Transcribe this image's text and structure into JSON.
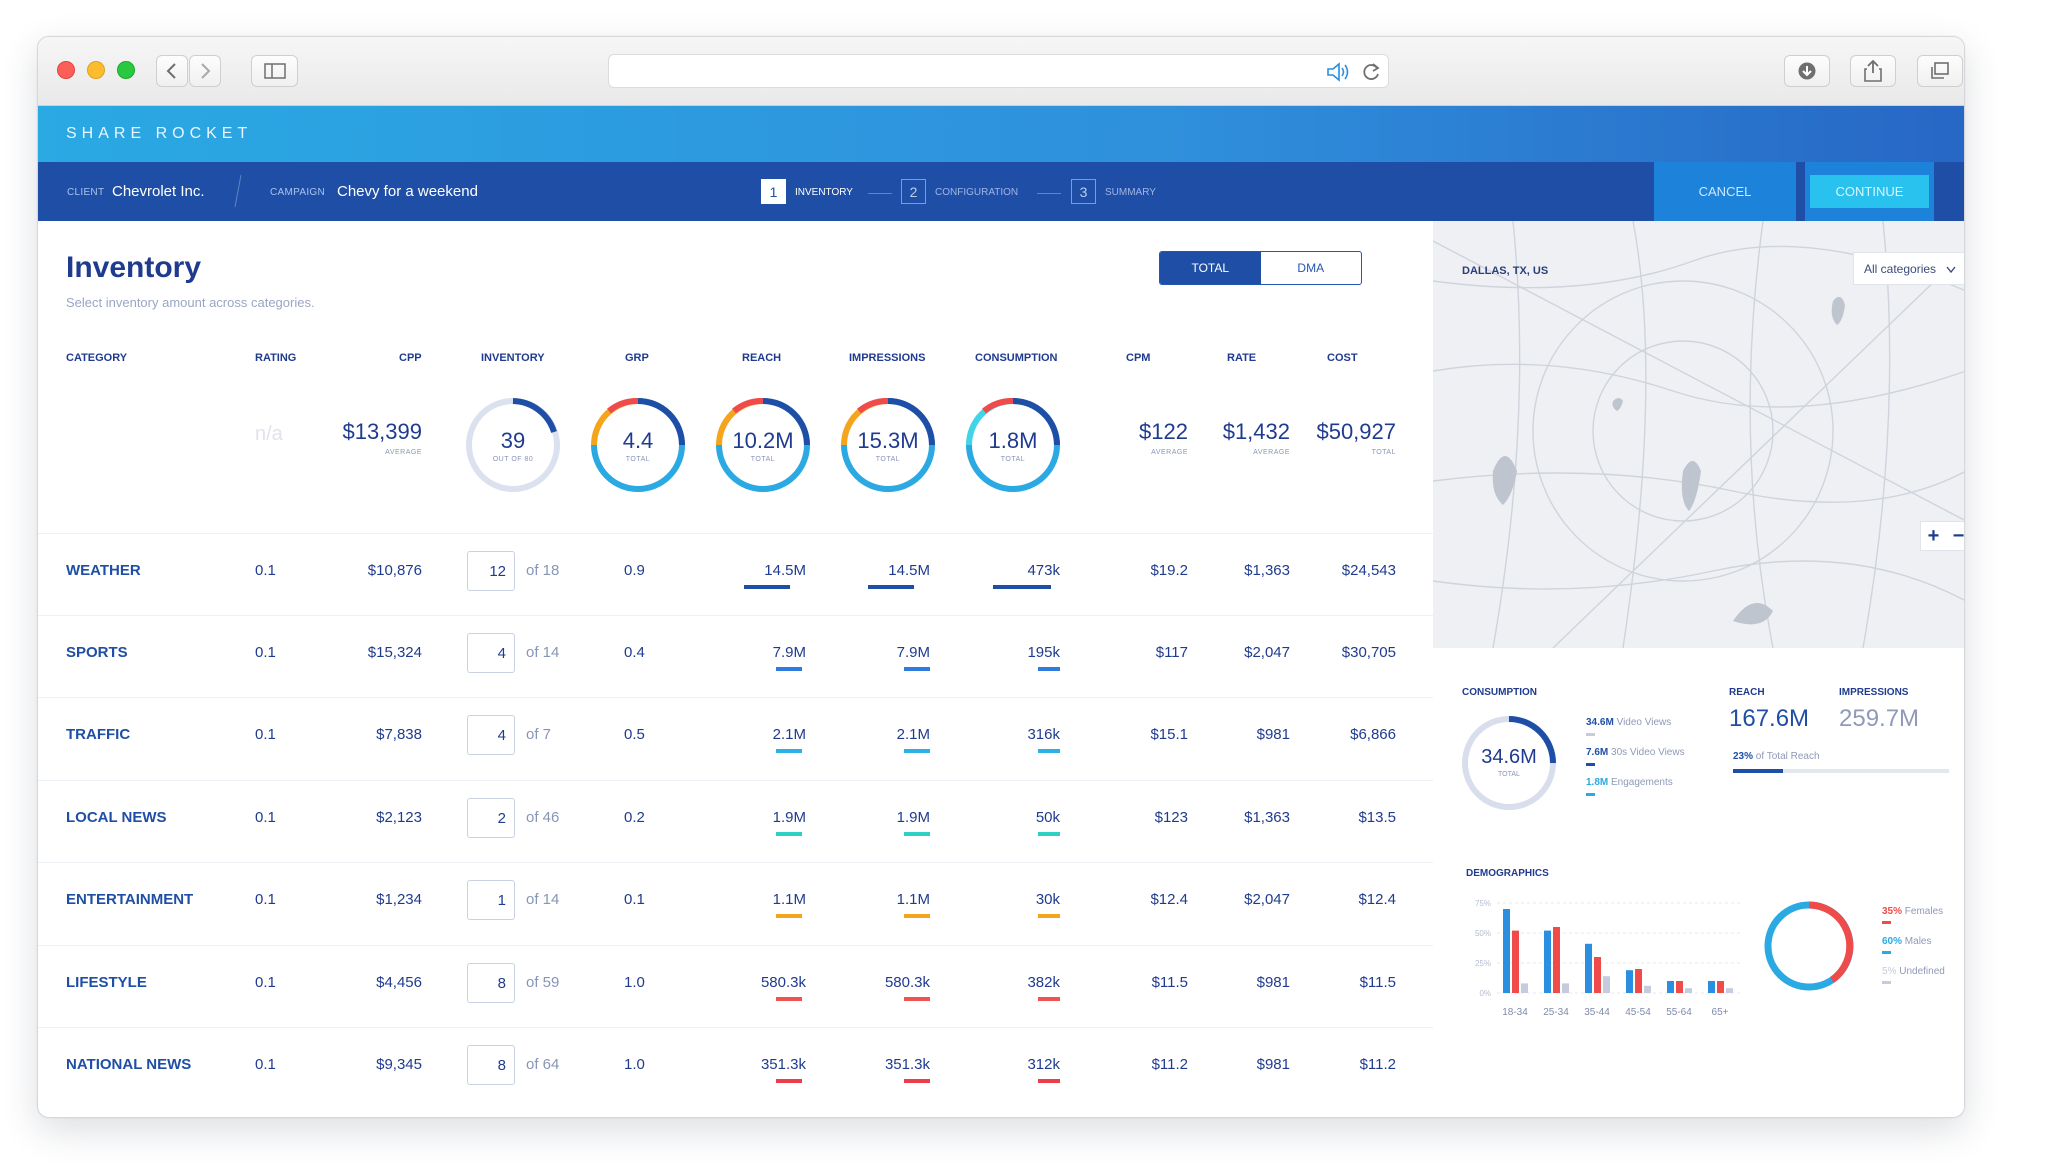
{
  "brand": {
    "name": "SHARE ROCKET"
  },
  "nav": {
    "client_label": "CLIENT",
    "client_value": "Chevrolet Inc.",
    "campaign_label": "CAMPAIGN",
    "campaign_value": "Chevy for a weekend",
    "steps": [
      {
        "num": "1",
        "label": "INVENTORY"
      },
      {
        "num": "2",
        "label": "CONFIGURATION"
      },
      {
        "num": "3",
        "label": "SUMMARY"
      }
    ],
    "cancel_label": "CANCEL",
    "continue_label": "CONTINUE"
  },
  "inventory": {
    "title": "Inventory",
    "subtitle": "Select inventory amount across categories.",
    "toggle": [
      "TOTAL",
      "DMA"
    ]
  },
  "headers": [
    "CATEGORY",
    "RATING",
    "CPP",
    "INVENTORY",
    "GRP",
    "REACH",
    "IMPRESSIONS",
    "CONSUMPTION",
    "CPM",
    "RATE",
    "COST"
  ],
  "summary": {
    "rating": "n/a",
    "cpp": "$13,399",
    "cpp_label": "AVERAGE",
    "inventory": "39",
    "inventory_label": "OUT OF 80",
    "grp": "4.4",
    "grp_label": "TOTAL",
    "reach": "10.2M",
    "reach_label": "TOTAL",
    "impressions": "15.3M",
    "impressions_label": "TOTAL",
    "consumption": "1.8M",
    "consumption_label": "TOTAL",
    "cpm": "$122",
    "cpm_label": "AVERAGE",
    "rate": "$1,432",
    "rate_label": "AVERAGE",
    "cost": "$50,927",
    "cost_label": "TOTAL"
  },
  "rows": [
    {
      "category": "WEATHER",
      "rating": "0.1",
      "cpp": "$10,876",
      "inv": "12",
      "of": "of 18",
      "grp": "0.9",
      "reach": "14.5M",
      "impressions": "14.5M",
      "consumption": "473k",
      "cpm": "$19.2",
      "rate": "$1,363",
      "cost": "$24,543",
      "color": "#1f4ea6"
    },
    {
      "category": "SPORTS",
      "rating": "0.1",
      "cpp": "$15,324",
      "inv": "4",
      "of": "of 14",
      "grp": "0.4",
      "reach": "7.9M",
      "impressions": "7.9M",
      "consumption": "195k",
      "cpm": "$117",
      "rate": "$2,047",
      "cost": "$30,705",
      "color": "#2f7be0"
    },
    {
      "category": "TRAFFIC",
      "rating": "0.1",
      "cpp": "$7,838",
      "inv": "4",
      "of": "of 7",
      "grp": "0.5",
      "reach": "2.1M",
      "impressions": "2.1M",
      "consumption": "316k",
      "cpm": "$15.1",
      "rate": "$981",
      "cost": "$6,866",
      "color": "#2bb1e6"
    },
    {
      "category": "LOCAL NEWS",
      "rating": "0.1",
      "cpp": "$2,123",
      "inv": "2",
      "of": "of 46",
      "grp": "0.2",
      "reach": "1.9M",
      "impressions": "1.9M",
      "consumption": "50k",
      "cpm": "$123",
      "rate": "$1,363",
      "cost": "$13.5",
      "color": "#2ed0c4"
    },
    {
      "category": "ENTERTAINMENT",
      "rating": "0.1",
      "cpp": "$1,234",
      "inv": "1",
      "of": "of 14",
      "grp": "0.1",
      "reach": "1.1M",
      "impressions": "1.1M",
      "consumption": "30k",
      "cpm": "$12.4",
      "rate": "$2,047",
      "cost": "$12.4",
      "color": "#f4a51c"
    },
    {
      "category": "LIFESTYLE",
      "rating": "0.1",
      "cpp": "$4,456",
      "inv": "8",
      "of": "of 59",
      "grp": "1.0",
      "reach": "580.3k",
      "impressions": "580.3k",
      "consumption": "382k",
      "cpm": "$11.5",
      "rate": "$981",
      "cost": "$11.5",
      "color": "#ef5350"
    },
    {
      "category": "NATIONAL NEWS",
      "rating": "0.1",
      "cpp": "$9,345",
      "inv": "8",
      "of": "of 64",
      "grp": "1.0",
      "reach": "351.3k",
      "impressions": "351.3k",
      "consumption": "312k",
      "cpm": "$11.2",
      "rate": "$981",
      "cost": "$11.2",
      "color": "#ef3b4a"
    }
  ],
  "map": {
    "location": "DALLAS, TX, US",
    "filter": "All categories",
    "zoom_in": "+",
    "zoom_out": "−"
  },
  "stats": {
    "consumption_label": "CONSUMPTION",
    "consumption_value": "34.6M",
    "consumption_sub": "TOTAL",
    "legend": [
      {
        "value": "34.6M",
        "text": "Video Views"
      },
      {
        "value": "7.6M",
        "text": "30s Video Views"
      },
      {
        "value": "1.8M",
        "text": "Engagements"
      }
    ],
    "reach_label": "REACH",
    "reach_value": "167.6M",
    "impressions_label": "IMPRESSIONS",
    "impressions_value": "259.7M",
    "reach_note_value": "23%",
    "reach_note_text": "of Total Reach",
    "reach_fraction": 0.23
  },
  "demographics": {
    "label": "DEMOGRAPHICS",
    "legend": [
      {
        "value": "35%",
        "text": "Females",
        "color": "#ef4b4b"
      },
      {
        "value": "60%",
        "text": "Males",
        "color": "#2aa9e3"
      },
      {
        "value": "5%",
        "text": "Undefined",
        "color": "#c6ccdd"
      }
    ]
  },
  "chart_data": {
    "type": "bar",
    "categories": [
      "18-34",
      "25-34",
      "35-44",
      "45-54",
      "55-64",
      "65+"
    ],
    "series": [
      {
        "values": [
          70,
          52,
          41,
          19,
          10,
          10
        ]
      },
      {
        "values": [
          52,
          55,
          30,
          20,
          10,
          10
        ]
      },
      {
        "values": [
          8,
          8,
          14,
          6,
          4,
          4
        ]
      }
    ],
    "ylim": [
      0,
      75
    ],
    "yticks": [
      "75%",
      "50%",
      "25%",
      "0%"
    ],
    "colors": [
      "#2a8fe0",
      "#ef4b4b",
      "#c6ccdd"
    ]
  },
  "theme": {
    "accent": "#1f4ea6",
    "brand_blue": "#2aa9e3",
    "red": "#ef4b4b"
  }
}
